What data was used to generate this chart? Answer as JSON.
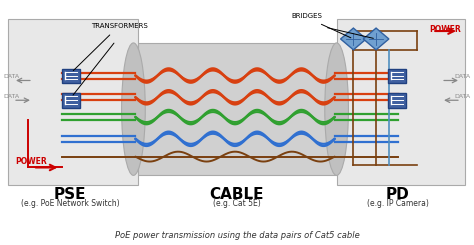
{
  "bg_color": "#ffffff",
  "title": "PoE power transmission using the data pairs of Cat5 cable",
  "pse_label": "PSE",
  "pse_sub": "(e.g. PoE Network Switch)",
  "cable_label": "CABLE",
  "cable_sub": "(e.g. Cat 5E)",
  "pd_label": "PD",
  "pd_sub": "(e.g. IP Camera)",
  "transformers_label": "TRANSFORMERS",
  "bridges_label": "BRIDGES",
  "power_label": "POWER",
  "data_label": "DATA",
  "wave_colors": [
    "#d84010",
    "#d84010",
    "#30a030",
    "#3070d0",
    "#7a4010"
  ],
  "panel_fc": "#e8e8e8",
  "panel_ec": "#aaaaaa",
  "cable_bg": "#d0d0d0",
  "transformer_fc": "#4060a0",
  "transformer_ec": "#204080",
  "bridge_fc": "#70a0d0",
  "bridge_ec": "#3060a0",
  "power_color": "#cc0000",
  "data_color": "#888888",
  "brown_color": "#7a4010"
}
